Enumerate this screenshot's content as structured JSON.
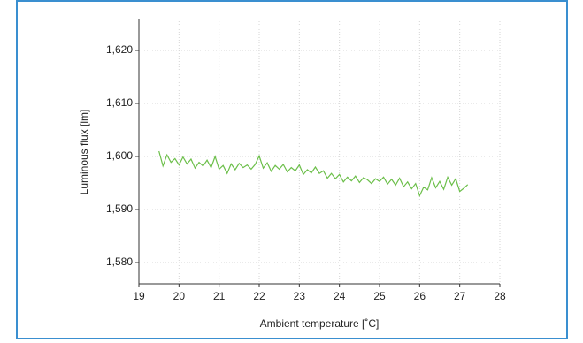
{
  "chart_data": {
    "type": "line",
    "x_label": "Ambient temperature [˚C]",
    "y_label": "Luminous flux [lm]",
    "x": [
      19.5,
      19.6,
      19.7,
      19.8,
      19.9,
      20.0,
      20.1,
      20.2,
      20.3,
      20.4,
      20.5,
      20.6,
      20.7,
      20.8,
      20.9,
      21.0,
      21.1,
      21.2,
      21.3,
      21.4,
      21.5,
      21.6,
      21.7,
      21.8,
      21.9,
      22.0,
      22.1,
      22.2,
      22.3,
      22.4,
      22.5,
      22.6,
      22.7,
      22.8,
      22.9,
      23.0,
      23.1,
      23.2,
      23.3,
      23.4,
      23.5,
      23.6,
      23.7,
      23.8,
      23.9,
      24.0,
      24.1,
      24.2,
      24.3,
      24.4,
      24.5,
      24.6,
      24.7,
      24.8,
      24.9,
      25.0,
      25.1,
      25.2,
      25.3,
      25.4,
      25.5,
      25.6,
      25.7,
      25.8,
      25.9,
      26.0,
      26.1,
      26.2,
      26.3,
      26.4,
      26.5,
      26.6,
      26.7,
      26.8,
      26.9,
      27.0,
      27.1,
      27.2
    ],
    "series": [
      {
        "color": "#6cbf4a",
        "values": [
          1601.0,
          1598.2,
          1600.3,
          1598.9,
          1599.6,
          1598.4,
          1599.9,
          1598.6,
          1599.5,
          1597.8,
          1598.9,
          1598.2,
          1599.3,
          1597.9,
          1600.0,
          1597.6,
          1598.3,
          1596.8,
          1598.6,
          1597.5,
          1598.7,
          1597.9,
          1598.4,
          1597.6,
          1598.5,
          1600.1,
          1597.8,
          1598.8,
          1597.2,
          1598.3,
          1597.6,
          1598.5,
          1597.1,
          1597.9,
          1597.3,
          1598.4,
          1596.6,
          1597.5,
          1596.9,
          1598.0,
          1596.8,
          1597.3,
          1595.9,
          1596.8,
          1595.8,
          1596.6,
          1595.2,
          1596.1,
          1595.4,
          1596.3,
          1595.1,
          1596.0,
          1595.6,
          1594.9,
          1595.8,
          1595.3,
          1596.1,
          1594.8,
          1595.7,
          1594.6,
          1595.9,
          1594.3,
          1595.2,
          1593.9,
          1594.9,
          1592.6,
          1594.2,
          1593.7,
          1596.0,
          1594.1,
          1595.3,
          1593.8,
          1596.1,
          1594.6,
          1595.8,
          1593.4,
          1594.0,
          1594.7
        ]
      }
    ],
    "xlim": [
      19,
      28
    ],
    "xticks": [
      19,
      20,
      21,
      22,
      23,
      24,
      25,
      26,
      27,
      28
    ],
    "ylim": [
      1576,
      1626
    ],
    "yticks": [
      {
        "value": 1580,
        "label": "1,580"
      },
      {
        "value": 1590,
        "label": "1,590"
      },
      {
        "value": 1600,
        "label": "1,600"
      },
      {
        "value": 1610,
        "label": "1,610"
      },
      {
        "value": 1620,
        "label": "1,620"
      }
    ],
    "grid": true
  }
}
